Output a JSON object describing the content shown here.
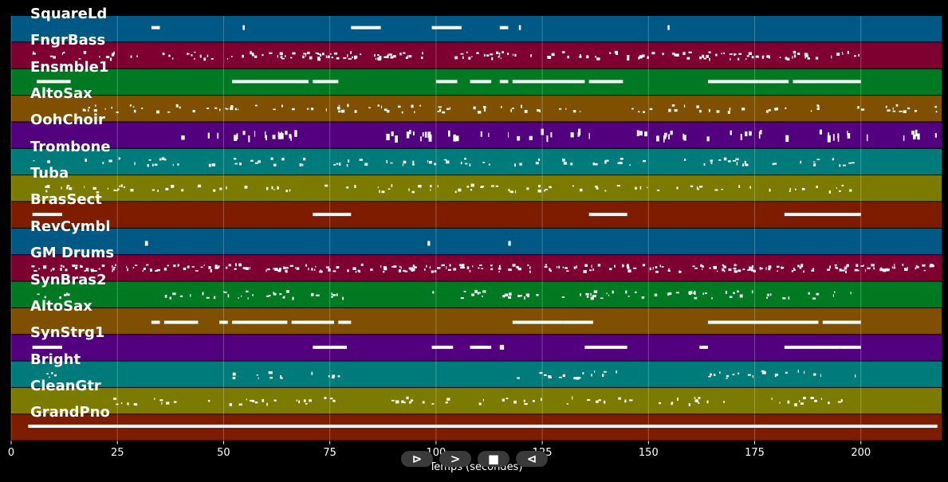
{
  "chart_data": {
    "type": "piano-roll",
    "xlabel": "Temps (secondes)",
    "xlim": [
      0,
      219
    ],
    "xticks": [
      0,
      25,
      50,
      75,
      100,
      125,
      150,
      175,
      200
    ],
    "tracks": [
      {
        "name": "SquareLd",
        "color": "#005885",
        "notes": [
          [
            33,
            35
          ],
          [
            54.5,
            54.8
          ],
          [
            80,
            87
          ],
          [
            99,
            106
          ],
          [
            115,
            117
          ],
          [
            119.5,
            119.8
          ],
          [
            154.5,
            154.8
          ]
        ]
      },
      {
        "name": "FngrBass",
        "color": "#7d0030",
        "regions": [
          [
            5,
            97
          ],
          [
            103,
            200
          ]
        ],
        "density": 1.0,
        "size": "small"
      },
      {
        "name": "Ensmble1",
        "color": "#007a22",
        "notes": [
          [
            6,
            14
          ],
          [
            52,
            70
          ],
          [
            71,
            77
          ],
          [
            100,
            105
          ],
          [
            108,
            113
          ],
          [
            115,
            117
          ],
          [
            118,
            135
          ],
          [
            136,
            144
          ],
          [
            164,
            176
          ],
          [
            176,
            183
          ],
          [
            184,
            200
          ]
        ]
      },
      {
        "name": "AltoSax",
        "color": "#7e5000",
        "regions": [
          [
            15,
            50
          ],
          [
            50,
            90
          ],
          [
            91,
            136
          ],
          [
            146,
            173
          ],
          [
            174,
            190
          ],
          [
            197,
            218
          ]
        ],
        "density": 0.6,
        "size": "small"
      },
      {
        "name": "OohChoir",
        "color": "#53007e",
        "regions": [
          [
            35,
            70
          ],
          [
            88,
            137
          ],
          [
            146,
            183
          ],
          [
            188,
            218
          ]
        ],
        "density": 0.55,
        "size": "tall"
      },
      {
        "name": "Trombone",
        "color": "#007b7b",
        "regions": [
          [
            4,
            200
          ]
        ],
        "density": 0.5,
        "size": "small"
      },
      {
        "name": "Tuba",
        "color": "#7b7b00",
        "regions": [
          [
            4,
            200
          ]
        ],
        "density": 0.5,
        "size": "small"
      },
      {
        "name": "BrasSect",
        "color": "#7e1c00",
        "notes": [
          [
            5,
            12
          ],
          [
            71,
            80
          ],
          [
            136,
            145
          ],
          [
            182,
            200
          ]
        ]
      },
      {
        "name": "RevCymbl",
        "color": "#005885",
        "notes": [
          [
            31.5,
            32.2
          ],
          [
            98,
            98.6
          ],
          [
            117,
            117.6
          ]
        ]
      },
      {
        "name": "GM Drums",
        "color": "#7d0030",
        "regions": [
          [
            4,
            218
          ]
        ],
        "density": 1.3,
        "size": "small"
      },
      {
        "name": "SynBras2",
        "color": "#007a22",
        "regions": [
          [
            6,
            14
          ],
          [
            33,
            80
          ],
          [
            99,
            200
          ]
        ],
        "density": 0.7,
        "size": "small"
      },
      {
        "name": "AltoSax",
        "color": "#7e5000",
        "notes": [
          [
            33,
            35
          ],
          [
            36,
            44
          ],
          [
            49,
            51
          ],
          [
            52,
            65
          ],
          [
            66,
            76
          ],
          [
            77,
            80
          ],
          [
            118,
            130
          ],
          [
            130,
            137
          ],
          [
            164,
            175
          ],
          [
            175,
            190
          ],
          [
            191,
            200
          ]
        ]
      },
      {
        "name": "SynStrg1",
        "color": "#53007e",
        "notes": [
          [
            5,
            12
          ],
          [
            71,
            79
          ],
          [
            99,
            104
          ],
          [
            108,
            113
          ],
          [
            115,
            116
          ],
          [
            135,
            145
          ],
          [
            162,
            164
          ],
          [
            182,
            195
          ],
          [
            195,
            200
          ]
        ]
      },
      {
        "name": "Bright",
        "color": "#007b7b",
        "regions": [
          [
            6,
            12
          ],
          [
            52,
            77
          ],
          [
            118,
            145
          ],
          [
            164,
            200
          ]
        ],
        "density": 0.6,
        "size": "small"
      },
      {
        "name": "CleanGtr",
        "color": "#7b7b00",
        "regions": [
          [
            24,
            80
          ],
          [
            89,
            147
          ],
          [
            147,
            170
          ],
          [
            175,
            200
          ]
        ],
        "density": 0.5,
        "size": "small"
      },
      {
        "name": "GrandPno",
        "color": "#7e1c00",
        "notes": [
          [
            4,
            218
          ]
        ]
      }
    ]
  },
  "controls": {
    "play": "⊳",
    "forward": ">",
    "stop": "■",
    "rewind": "⊲"
  }
}
